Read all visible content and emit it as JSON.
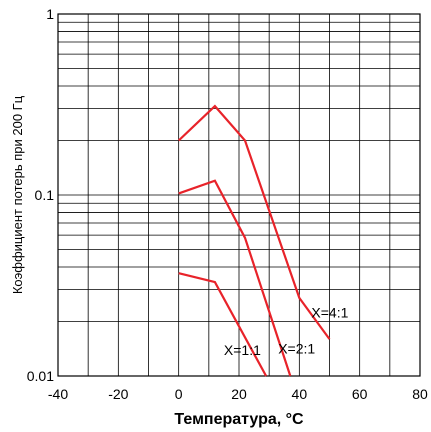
{
  "chart_data": {
    "type": "line",
    "title": "",
    "xlabel": "Температура, °C",
    "ylabel": "Коэффициент потерь при 200 Гц",
    "xlim": [
      -40,
      80
    ],
    "ylim": [
      0.01,
      1
    ],
    "y_scale": "log",
    "grid": true,
    "x_ticks": [
      "-40",
      "-20",
      "0",
      "20",
      "40",
      "60",
      "80"
    ],
    "y_ticks": [
      "1",
      "0.1",
      "0.01"
    ],
    "line_color": "#e8232a",
    "series": [
      {
        "name": "X=4:1",
        "x": [
          0,
          12,
          22,
          40,
          50
        ],
        "y": [
          0.2,
          0.31,
          0.2,
          0.027,
          0.016
        ]
      },
      {
        "name": "X=2:1",
        "x": [
          0,
          12,
          22,
          37
        ],
        "y": [
          0.102,
          0.12,
          0.058,
          0.01
        ]
      },
      {
        "name": "X=1:1",
        "x": [
          0,
          12,
          29
        ],
        "y": [
          0.037,
          0.033,
          0.01
        ]
      }
    ],
    "annotations": [
      {
        "text": "X=4:1",
        "x": 44,
        "y": 0.021
      },
      {
        "text": "X=2:1",
        "x": 33,
        "y": 0.0133
      },
      {
        "text": "X=1:1",
        "x": 15,
        "y": 0.0131
      }
    ]
  }
}
